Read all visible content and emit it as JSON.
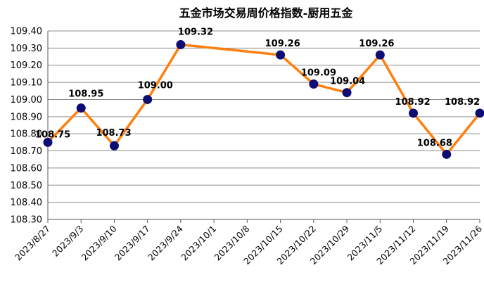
{
  "chart_data": {
    "type": "line",
    "title": "五金市场交易周价格指数-厨用五金",
    "xlabel": "",
    "ylabel": "",
    "ylim": [
      108.3,
      109.4
    ],
    "ystep": 0.1,
    "grid": true,
    "legend": "none",
    "categories": [
      "2023/8/27",
      "2023/9/3",
      "2023/9/10",
      "2023/9/17",
      "2023/9/24",
      "2023/10/1",
      "2023/10/8",
      "2023/10/15",
      "2023/10/22",
      "2023/10/29",
      "2023/11/5",
      "2023/11/12",
      "2023/11/19",
      "2023/11/26"
    ],
    "series": [
      {
        "values": [
          108.75,
          108.95,
          108.73,
          109.0,
          109.32,
          null,
          null,
          109.26,
          109.09,
          109.04,
          109.26,
          108.92,
          108.68,
          108.92
        ],
        "labels": [
          "108.75",
          "108.95",
          "108.73",
          "109.00",
          "109.32",
          "",
          "",
          "109.26",
          "109.09",
          "109.04",
          "109.26",
          "108.92",
          "108.68",
          "108.92"
        ],
        "line_color": "#ff7f0e",
        "marker_color": "#0d0d73"
      }
    ]
  }
}
